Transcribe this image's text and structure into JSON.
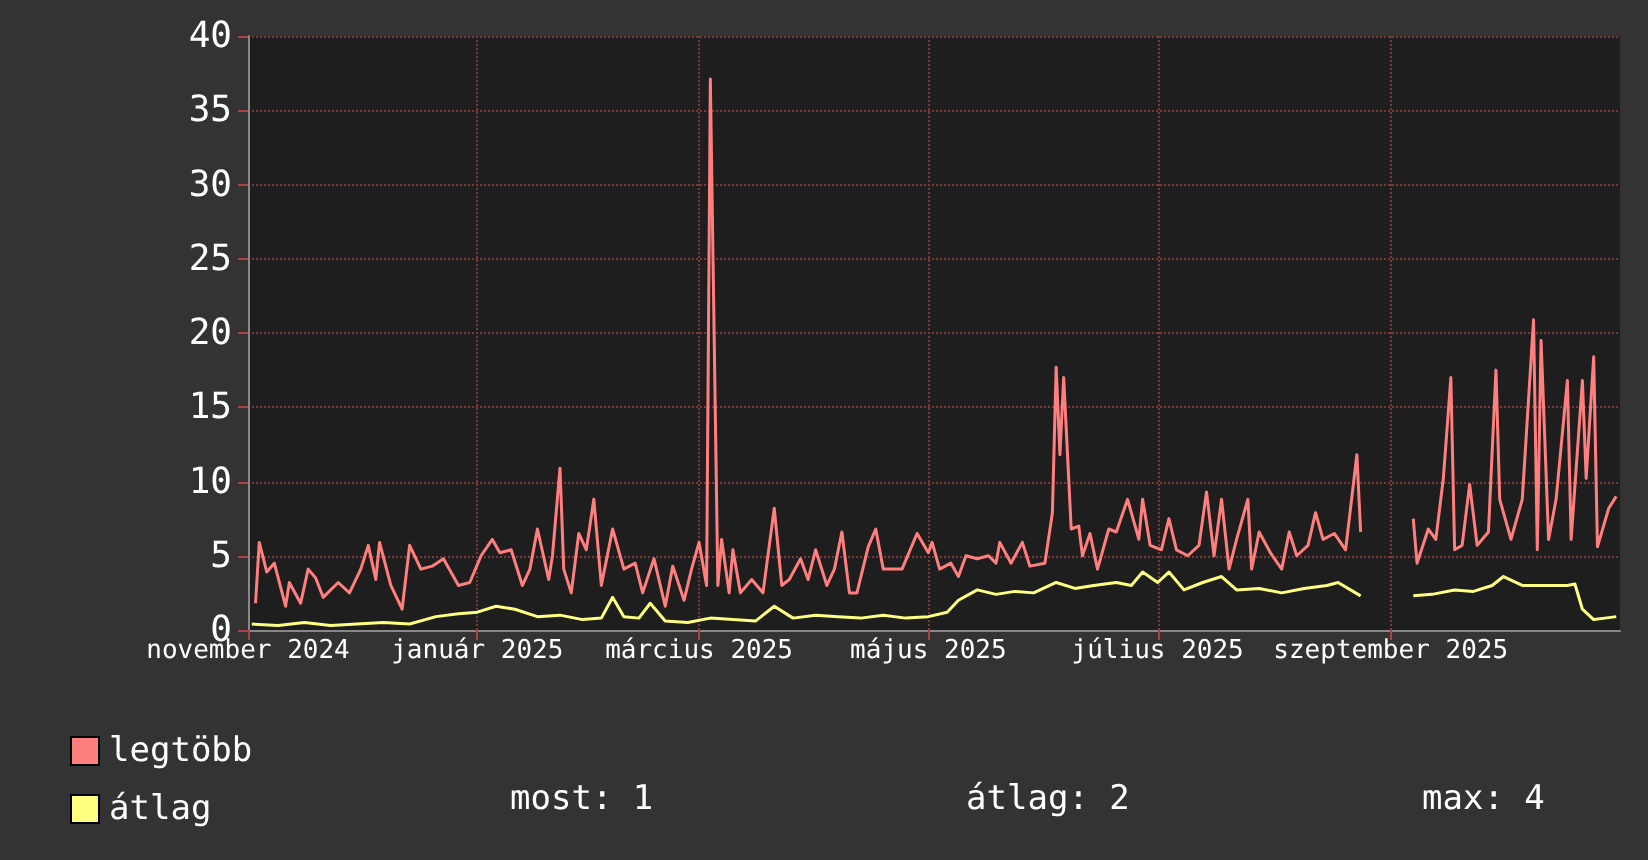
{
  "chart_data": {
    "type": "line",
    "xlim": [
      "2024-11-01",
      "2025-11-01"
    ],
    "xticks": [
      {
        "value": "2024-11-01",
        "label": "november 2024"
      },
      {
        "value": "2025-01-01",
        "label": "január 2025"
      },
      {
        "value": "2025-03-01",
        "label": "március 2025"
      },
      {
        "value": "2025-05-01",
        "label": "május 2025"
      },
      {
        "value": "2025-07-01",
        "label": "július 2025"
      },
      {
        "value": "2025-09-01",
        "label": "szeptember 2025"
      }
    ],
    "ylim": [
      0,
      40
    ],
    "yticks": [
      0,
      5,
      10,
      15,
      20,
      25,
      30,
      35,
      40
    ],
    "grid": true,
    "legend": "bottom left",
    "marker": "none",
    "line_style": "solid",
    "annotations": [
      "most: 1",
      "átlag: 2",
      "max: 4"
    ],
    "series": [
      {
        "name": "legtöbb",
        "color": "#ff7f7f",
        "x": [
          "2024-11-03",
          "2024-11-04",
          "2024-11-06",
          "2024-11-08",
          "2024-11-11",
          "2024-11-12",
          "2024-11-15",
          "2024-11-17",
          "2024-11-19",
          "2024-11-21",
          "2024-11-25",
          "2024-11-28",
          "2024-12-01",
          "2024-12-03",
          "2024-12-05",
          "2024-12-06",
          "2024-12-09",
          "2024-12-12",
          "2024-12-14",
          "2024-12-17",
          "2024-12-20",
          "2024-12-23",
          "2024-12-27",
          "2024-12-30",
          "2025-01-02",
          "2025-01-05",
          "2025-01-07",
          "2025-01-10",
          "2025-01-13",
          "2025-01-15",
          "2025-01-17",
          "2025-01-20",
          "2025-01-21",
          "2025-01-23",
          "2025-01-24",
          "2025-01-26",
          "2025-01-28",
          "2025-01-30",
          "2025-02-01",
          "2025-02-03",
          "2025-02-06",
          "2025-02-09",
          "2025-02-12",
          "2025-02-14",
          "2025-02-17",
          "2025-02-20",
          "2025-02-22",
          "2025-02-25",
          "2025-02-27",
          "2025-03-01",
          "2025-03-03",
          "2025-03-04",
          "2025-03-06",
          "2025-03-07",
          "2025-03-09",
          "2025-03-10",
          "2025-03-12",
          "2025-03-15",
          "2025-03-18",
          "2025-03-21",
          "2025-03-23",
          "2025-03-25",
          "2025-03-28",
          "2025-03-30",
          "2025-04-01",
          "2025-04-04",
          "2025-04-06",
          "2025-04-08",
          "2025-04-10",
          "2025-04-12",
          "2025-04-15",
          "2025-04-17",
          "2025-04-19",
          "2025-04-22",
          "2025-04-24",
          "2025-04-28",
          "2025-05-01",
          "2025-05-02",
          "2025-05-04",
          "2025-05-07",
          "2025-05-09",
          "2025-05-11",
          "2025-05-14",
          "2025-05-17",
          "2025-05-19",
          "2025-05-20",
          "2025-05-23",
          "2025-05-26",
          "2025-05-28",
          "2025-06-01",
          "2025-06-03",
          "2025-06-04",
          "2025-06-05",
          "2025-06-06",
          "2025-06-08",
          "2025-06-10",
          "2025-06-11",
          "2025-06-13",
          "2025-06-15",
          "2025-06-18",
          "2025-06-20",
          "2025-06-23",
          "2025-06-26",
          "2025-06-27",
          "2025-06-29",
          "2025-07-02",
          "2025-07-04",
          "2025-07-06",
          "2025-07-09",
          "2025-07-12",
          "2025-07-14",
          "2025-07-16",
          "2025-07-18",
          "2025-07-20",
          "2025-07-22",
          "2025-07-25",
          "2025-07-26",
          "2025-07-28",
          "2025-07-31",
          "2025-08-03",
          "2025-08-05",
          "2025-08-07",
          "2025-08-10",
          "2025-08-12",
          "2025-08-14",
          "2025-08-17",
          "2025-08-20",
          "2025-08-23",
          "2025-08-24",
          "2025-08-29",
          "2025-09-07",
          "2025-09-08",
          "2025-09-11",
          "2025-09-13",
          "2025-09-15",
          "2025-09-17",
          "2025-09-18",
          "2025-09-20",
          "2025-09-22",
          "2025-09-24",
          "2025-09-27",
          "2025-09-29",
          "2025-09-30",
          "2025-10-03",
          "2025-10-06",
          "2025-10-09",
          "2025-10-10",
          "2025-10-11",
          "2025-10-13",
          "2025-10-15",
          "2025-10-18",
          "2025-10-19",
          "2025-10-22",
          "2025-10-23",
          "2025-10-25",
          "2025-10-26",
          "2025-10-29",
          "2025-10-31"
        ],
        "values": [
          1.8,
          5.9,
          3.9,
          4.5,
          1.6,
          3.2,
          1.8,
          4.1,
          3.5,
          2.2,
          3.2,
          2.5,
          4.1,
          5.7,
          3.4,
          5.9,
          3.0,
          1.4,
          5.7,
          4.1,
          4.3,
          4.8,
          3.0,
          3.2,
          5.0,
          6.1,
          5.2,
          5.4,
          3.0,
          4.1,
          6.8,
          3.4,
          5.0,
          10.9,
          4.1,
          2.5,
          6.5,
          5.4,
          8.8,
          3.0,
          6.8,
          4.1,
          4.5,
          2.5,
          4.8,
          1.6,
          4.3,
          2.0,
          4.1,
          5.9,
          3.0,
          37.1,
          3.0,
          6.1,
          2.5,
          5.4,
          2.5,
          3.4,
          2.5,
          8.2,
          3.0,
          3.4,
          4.8,
          3.4,
          5.4,
          3.0,
          4.1,
          6.6,
          2.5,
          2.5,
          5.6,
          6.8,
          4.1,
          4.1,
          4.1,
          6.5,
          5.2,
          5.9,
          4.1,
          4.5,
          3.6,
          5.0,
          4.8,
          5.0,
          4.5,
          5.9,
          4.5,
          5.9,
          4.3,
          4.5,
          7.9,
          17.7,
          11.8,
          17.0,
          6.8,
          7.0,
          5.0,
          6.5,
          4.1,
          6.8,
          6.6,
          8.8,
          6.1,
          8.8,
          5.7,
          5.4,
          7.5,
          5.4,
          5.0,
          5.7,
          9.3,
          5.0,
          8.8,
          4.1,
          6.1,
          8.8,
          4.1,
          6.6,
          5.2,
          4.1,
          6.6,
          5.0,
          5.7,
          7.9,
          6.1,
          6.5,
          5.4,
          11.8,
          6.6,
          null,
          7.5,
          4.5,
          6.8,
          6.1,
          10.2,
          17.0,
          5.4,
          5.7,
          9.8,
          5.7,
          6.6,
          17.5,
          8.8,
          6.1,
          8.8,
          20.9,
          5.4,
          19.5,
          6.1,
          8.8,
          16.8,
          6.1,
          16.8,
          10.2,
          18.4,
          5.6,
          8.2,
          9.0
        ]
      },
      {
        "name": "átlag",
        "color": "#ffff80",
        "x": [
          "2024-11-02",
          "2024-11-09",
          "2024-11-16",
          "2024-11-23",
          "2024-11-30",
          "2024-12-07",
          "2024-12-14",
          "2024-12-21",
          "2024-12-27",
          "2025-01-01",
          "2025-01-06",
          "2025-01-11",
          "2025-01-17",
          "2025-01-23",
          "2025-01-29",
          "2025-02-03",
          "2025-02-06",
          "2025-02-09",
          "2025-02-13",
          "2025-02-16",
          "2025-02-20",
          "2025-02-26",
          "2025-03-04",
          "2025-03-10",
          "2025-03-16",
          "2025-03-21",
          "2025-03-26",
          "2025-04-01",
          "2025-04-07",
          "2025-04-13",
          "2025-04-19",
          "2025-04-25",
          "2025-05-01",
          "2025-05-06",
          "2025-05-09",
          "2025-05-14",
          "2025-05-19",
          "2025-05-24",
          "2025-05-29",
          "2025-06-04",
          "2025-06-09",
          "2025-06-14",
          "2025-06-20",
          "2025-06-24",
          "2025-06-27",
          "2025-07-01",
          "2025-07-04",
          "2025-07-08",
          "2025-07-13",
          "2025-07-18",
          "2025-07-22",
          "2025-07-28",
          "2025-08-03",
          "2025-08-09",
          "2025-08-15",
          "2025-08-18",
          "2025-08-24",
          "2025-08-29",
          "2025-09-07",
          "2025-09-12",
          "2025-09-18",
          "2025-09-23",
          "2025-09-28",
          "2025-10-01",
          "2025-10-06",
          "2025-10-13",
          "2025-10-18",
          "2025-10-20",
          "2025-10-22",
          "2025-10-25",
          "2025-10-28",
          "2025-10-31"
        ],
        "values": [
          0.4,
          0.3,
          0.5,
          0.3,
          0.4,
          0.5,
          0.4,
          0.9,
          1.1,
          1.2,
          1.6,
          1.4,
          0.9,
          1.0,
          0.7,
          0.8,
          2.2,
          0.9,
          0.8,
          1.8,
          0.6,
          0.5,
          0.8,
          0.7,
          0.6,
          1.6,
          0.8,
          1.0,
          0.9,
          0.8,
          1.0,
          0.8,
          0.9,
          1.2,
          2.0,
          2.7,
          2.4,
          2.6,
          2.5,
          3.2,
          2.8,
          3.0,
          3.2,
          3.0,
          3.9,
          3.2,
          3.9,
          2.7,
          3.2,
          3.6,
          2.7,
          2.8,
          2.5,
          2.8,
          3.0,
          3.2,
          2.3,
          null,
          2.3,
          2.4,
          2.7,
          2.6,
          3.0,
          3.6,
          3.0,
          3.0,
          3.0,
          3.1,
          1.4,
          0.7,
          0.8,
          0.9
        ]
      }
    ]
  }
}
